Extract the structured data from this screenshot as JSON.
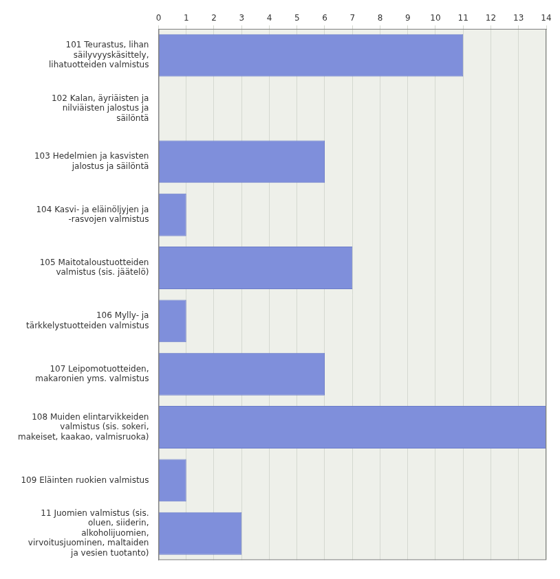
{
  "chart_data": {
    "type": "bar",
    "orientation": "horizontal",
    "categories": [
      "101 Teurastus, lihan säilyvyyskäsittely, lihatuotteiden valmistus",
      "102 Kalan, äyriäisten ja nilviäisten jalostus ja säilöntä",
      "103 Hedelmien ja kasvisten jalostus ja säilöntä",
      "104 Kasvi- ja eläinöljyjen ja -rasvojen valmistus",
      "105 Maitotaloustuotteiden valmistus (sis. jäätelö)",
      "106 Mylly- ja tärkkelystuotteiden valmistus",
      "107 Leipomotuotteiden, makaronien yms. valmistus",
      "108 Muiden elintarvikkeiden valmistus (sis. sokeri, makeiset, kaakao, valmisruoka)",
      "109 Eläinten ruokien valmistus",
      "11 Juomien valmistus (sis. oluen, siiderin, alkoholijuomien, virvoitusjuominen, maltaiden ja vesien tuotanto)"
    ],
    "values": [
      11,
      0,
      6,
      1,
      7,
      1,
      6,
      14,
      1,
      3
    ],
    "color": "#7f8fdb",
    "xlim": [
      0,
      14
    ],
    "xticks": [
      0,
      1,
      2,
      3,
      4,
      5,
      6,
      7,
      8,
      9,
      10,
      11,
      12,
      13,
      14
    ],
    "grid": true
  }
}
